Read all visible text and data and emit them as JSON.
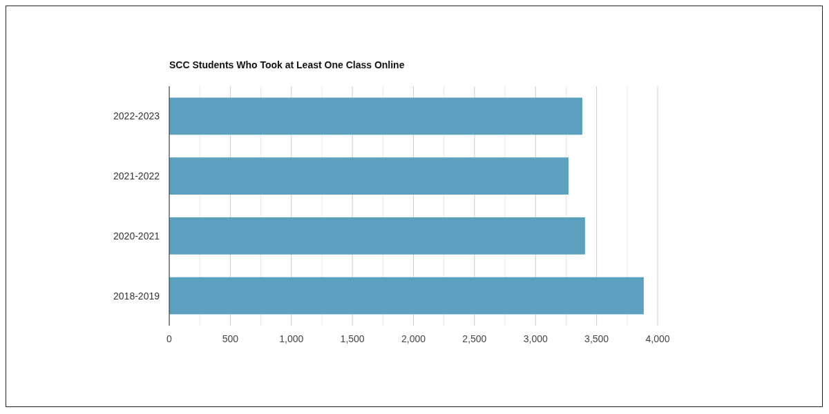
{
  "chart_data": {
    "type": "bar",
    "orientation": "horizontal",
    "title": "SCC Students Who Took at Least One Class Online",
    "categories": [
      "2022-2023",
      "2021-2022",
      "2020-2021",
      "2018-2019"
    ],
    "values": [
      3383,
      3270,
      3405,
      3886
    ],
    "color": "#5ba1bf",
    "xlim": [
      0,
      4000
    ],
    "xticks": [
      0,
      {
        "value": 250,
        "label": null
      },
      {
        "value": 500,
        "label": "500"
      },
      {
        "value": 750,
        "label": null
      },
      {
        "value": 1000,
        "label": "1,000"
      },
      {
        "value": 1250,
        "label": null
      },
      {
        "value": 1500,
        "label": "1,500"
      },
      {
        "value": 1750,
        "label": null
      },
      {
        "value": 2000,
        "label": "2,000"
      },
      {
        "value": 2250,
        "label": null
      },
      {
        "value": 2500,
        "label": "2,500"
      },
      {
        "value": 2750,
        "label": null
      },
      {
        "value": 3000,
        "label": "3,000"
      },
      {
        "value": 3250,
        "label": null
      },
      {
        "value": 3500,
        "label": "3,500"
      },
      {
        "value": 3750,
        "label": null
      },
      {
        "value": 4000,
        "label": "4,000"
      }
    ],
    "grid": "x"
  }
}
